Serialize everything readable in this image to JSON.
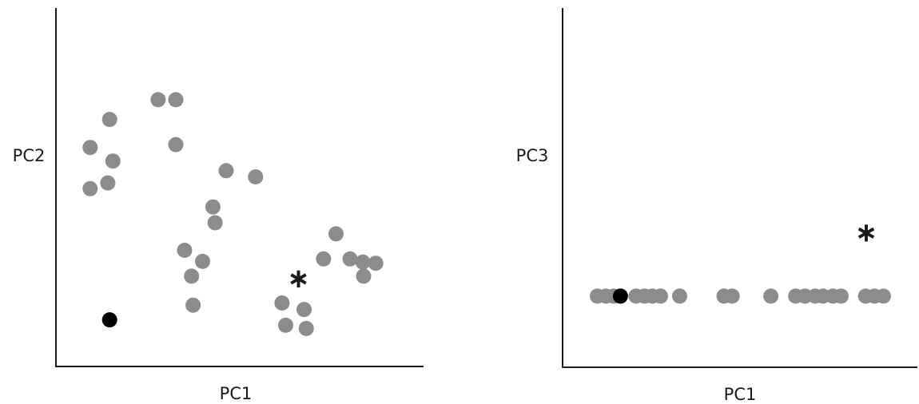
{
  "colors": {
    "sample": "#8c8c8c",
    "highlight": "#000000",
    "axis": "#1a1a1a"
  },
  "chart_data": [
    {
      "type": "scatter",
      "xlabel": "PC1",
      "ylabel": "PC2",
      "grid": false,
      "axis_ticks": false,
      "xlim": [
        0,
        100
      ],
      "ylim": [
        0,
        100
      ],
      "series": [
        {
          "role": "group-gray",
          "color": "#8c8c8c",
          "marker": "circle",
          "points": [
            [
              27.8,
              74.4
            ],
            [
              32.6,
              74.4
            ],
            [
              32.6,
              61.9
            ],
            [
              14.6,
              68.9
            ],
            [
              9.3,
              61.1
            ],
            [
              15.5,
              57.3
            ],
            [
              14.1,
              51.2
            ],
            [
              9.3,
              49.6
            ],
            [
              46.3,
              54.6
            ],
            [
              54.3,
              52.9
            ],
            [
              42.7,
              44.5
            ],
            [
              43.3,
              40.1
            ],
            [
              37.3,
              17.1
            ],
            [
              39.9,
              29.3
            ],
            [
              36.9,
              25.2
            ],
            [
              35.0,
              32.4
            ],
            [
              76.2,
              37.0
            ],
            [
              72.8,
              30.0
            ],
            [
              80.0,
              30.0
            ],
            [
              83.5,
              29.1
            ],
            [
              87.0,
              28.8
            ],
            [
              83.7,
              25.2
            ],
            [
              61.5,
              17.7
            ],
            [
              67.5,
              15.9
            ],
            [
              62.5,
              11.5
            ],
            [
              68.1,
              10.6
            ]
          ]
        },
        {
          "role": "highlight",
          "color": "#000000",
          "marker": "circle",
          "points": [
            [
              14.6,
              13.0
            ]
          ]
        },
        {
          "role": "star",
          "color": "#1a1a1a",
          "marker": "asterisk",
          "points": [
            [
              66.0,
              25.0
            ]
          ]
        }
      ]
    },
    {
      "type": "scatter",
      "xlabel": "PC1",
      "ylabel": "PC3",
      "grid": false,
      "axis_ticks": false,
      "xlim": [
        0,
        100
      ],
      "ylim": [
        0,
        100
      ],
      "series": [
        {
          "role": "group-gray",
          "color": "#8c8c8c",
          "marker": "circle",
          "points": [
            [
              9.8,
              19.8
            ],
            [
              12.2,
              19.8
            ],
            [
              14.4,
              19.8
            ],
            [
              20.7,
              19.8
            ],
            [
              23.1,
              19.8
            ],
            [
              25.3,
              19.8
            ],
            [
              27.6,
              19.8
            ],
            [
              33.0,
              19.8
            ],
            [
              45.5,
              19.8
            ],
            [
              47.8,
              19.8
            ],
            [
              58.7,
              19.8
            ],
            [
              65.7,
              19.8
            ],
            [
              68.3,
              19.8
            ],
            [
              71.2,
              19.8
            ],
            [
              73.4,
              19.8
            ],
            [
              76.2,
              19.8
            ],
            [
              78.5,
              19.8
            ],
            [
              85.4,
              19.8
            ],
            [
              87.9,
              19.8
            ],
            [
              90.4,
              19.8
            ]
          ]
        },
        {
          "role": "highlight",
          "color": "#000000",
          "marker": "circle",
          "points": [
            [
              16.3,
              19.8
            ]
          ]
        },
        {
          "role": "star",
          "color": "#1a1a1a",
          "marker": "asterisk",
          "points": [
            [
              85.6,
              37.9
            ]
          ]
        }
      ]
    }
  ]
}
